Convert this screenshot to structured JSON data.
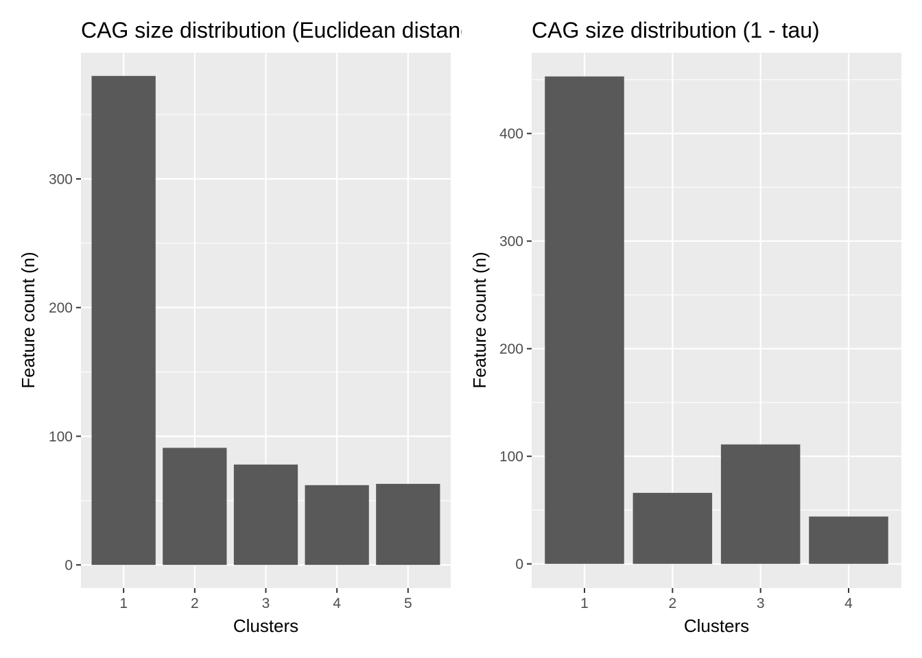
{
  "chart_data": [
    {
      "type": "bar",
      "title": "CAG size distribution (Euclidean distance)",
      "xlabel": "Clusters",
      "ylabel": "Feature count (n)",
      "categories": [
        "1",
        "2",
        "3",
        "4",
        "5"
      ],
      "values": [
        380,
        91,
        78,
        62,
        63
      ],
      "ylim": [
        -18,
        398
      ],
      "yticks": [
        0,
        100,
        200,
        300
      ],
      "grid": true,
      "bar_color": "#595959",
      "panel_background": "#ebebeb",
      "gridline_color": "#ffffff",
      "legend": "none"
    },
    {
      "type": "bar",
      "title": "CAG size distribution (1 - tau)",
      "xlabel": "Clusters",
      "ylabel": "Feature count (n)",
      "categories": [
        "1",
        "2",
        "3",
        "4"
      ],
      "values": [
        453,
        66,
        111,
        44
      ],
      "ylim": [
        -22.5,
        475
      ],
      "yticks": [
        0,
        100,
        200,
        300,
        400
      ],
      "grid": true,
      "bar_color": "#595959",
      "panel_background": "#ebebeb",
      "gridline_color": "#ffffff",
      "legend": "none"
    }
  ]
}
